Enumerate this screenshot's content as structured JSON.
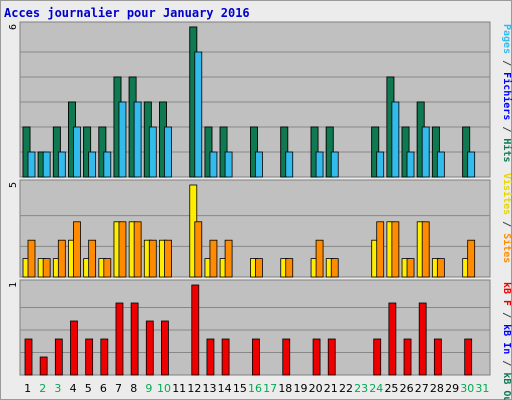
{
  "chart_data": {
    "type": "bar",
    "title": "Acces journalier pour January 2016",
    "categories": [
      "1",
      "2",
      "3",
      "4",
      "5",
      "6",
      "7",
      "8",
      "9",
      "10",
      "11",
      "12",
      "13",
      "14",
      "15",
      "16",
      "17",
      "18",
      "19",
      "20",
      "21",
      "22",
      "23",
      "24",
      "25",
      "26",
      "27",
      "28",
      "29",
      "30",
      "31"
    ],
    "weekend_days": [
      "2",
      "3",
      "9",
      "10",
      "16",
      "17",
      "23",
      "24",
      "30",
      "31"
    ],
    "panels": [
      {
        "id": "hits",
        "ymax_label": "6",
        "ymax": 6,
        "series": [
          {
            "name": "Pages",
            "color": "#0000ff",
            "values": [
              2,
              1,
              2,
              3,
              2,
              2,
              4,
              4,
              3,
              3,
              0,
              6,
              2,
              2,
              0,
              2,
              0,
              2,
              0,
              2,
              2,
              0,
              0,
              2,
              4,
              2,
              3,
              2,
              0,
              2,
              0
            ]
          },
          {
            "name": "Fichiers",
            "color": "#33bbee",
            "values": [
              1,
              1,
              1,
              2,
              1,
              1,
              3,
              3,
              2,
              2,
              0,
              5,
              1,
              1,
              0,
              1,
              0,
              1,
              0,
              1,
              1,
              0,
              0,
              1,
              3,
              1,
              2,
              1,
              0,
              1,
              0
            ]
          },
          {
            "name": "Hits",
            "color": "#0f7a52",
            "values": [
              2,
              1,
              2,
              3,
              2,
              2,
              4,
              4,
              3,
              3,
              0,
              6,
              2,
              2,
              0,
              2,
              0,
              2,
              0,
              2,
              2,
              0,
              0,
              2,
              4,
              2,
              3,
              2,
              0,
              2,
              0
            ]
          }
        ]
      },
      {
        "id": "visits",
        "ymax_label": "5",
        "ymax": 5,
        "series": [
          {
            "name": "Visites",
            "color": "#ffee00",
            "values": [
              1,
              1,
              1,
              2,
              1,
              1,
              3,
              3,
              2,
              2,
              0,
              5,
              1,
              1,
              0,
              1,
              0,
              1,
              0,
              1,
              1,
              0,
              0,
              2,
              3,
              1,
              3,
              1,
              0,
              1,
              0
            ]
          },
          {
            "name": "Sites",
            "color": "#ff8c00",
            "values": [
              2,
              1,
              2,
              3,
              2,
              1,
              3,
              3,
              2,
              2,
              0,
              3,
              2,
              2,
              0,
              1,
              0,
              1,
              0,
              2,
              1,
              0,
              0,
              3,
              3,
              1,
              3,
              1,
              0,
              2,
              0
            ]
          }
        ]
      },
      {
        "id": "kbytes",
        "ymax_label": "1",
        "ymax": 1,
        "series": [
          {
            "name": "kB F",
            "color": "#ee0000",
            "values": [
              0.4,
              0.2,
              0.4,
              0.6,
              0.4,
              0.4,
              0.8,
              0.8,
              0.6,
              0.6,
              0,
              1.0,
              0.4,
              0.4,
              0,
              0.4,
              0,
              0.4,
              0,
              0.4,
              0.4,
              0,
              0,
              0.4,
              0.8,
              0.4,
              0.8,
              0.4,
              0,
              0.4,
              0
            ]
          }
        ]
      }
    ],
    "right_labels": {
      "top": [
        {
          "text": "Pages",
          "color": "#33bbee"
        },
        {
          "text": " / ",
          "color": "#444444"
        },
        {
          "text": "Fichiers",
          "color": "#0000ff"
        },
        {
          "text": " / ",
          "color": "#444444"
        },
        {
          "text": "Hits",
          "color": "#0f7a52"
        }
      ],
      "middle": [
        {
          "text": "Visites",
          "color": "#e6d600"
        },
        {
          "text": " / ",
          "color": "#444444"
        },
        {
          "text": "Sites",
          "color": "#ff8c00"
        }
      ],
      "bottom": [
        {
          "text": "kB F",
          "color": "#ee0000"
        },
        {
          "text": " / ",
          "color": "#444444"
        },
        {
          "text": "kB In",
          "color": "#0000ff"
        },
        {
          "text": " / ",
          "color": "#444444"
        },
        {
          "text": "kB Out",
          "color": "#0f7a52"
        }
      ]
    },
    "colors": {
      "background": "#c0c0c0",
      "weekday_label": "#000000",
      "weekend_label": "#00aa55",
      "gridline": "#888888"
    }
  }
}
